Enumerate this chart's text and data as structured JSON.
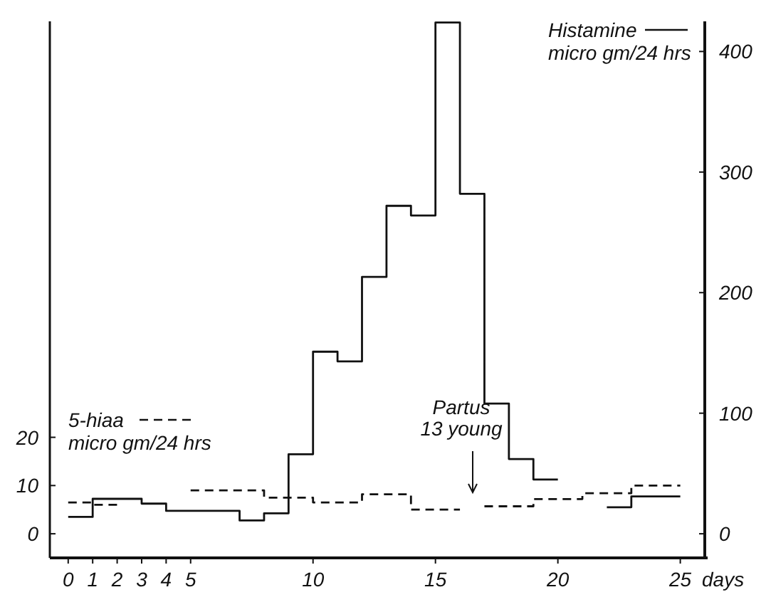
{
  "chart_data": {
    "type": "step",
    "xlabel": "days",
    "ylabel": "micro gm/24 hrs",
    "y2label": "micro gm/24 hrs",
    "xlim": [
      -0.75,
      26
    ],
    "xticks": [
      0,
      1,
      2,
      3,
      4,
      5,
      10,
      15,
      20,
      25
    ],
    "ylim": [
      -5,
      106.25
    ],
    "yticks": [
      0,
      10,
      20
    ],
    "y2lim": [
      -20,
      425
    ],
    "y2ticks": [
      0,
      100,
      200,
      300,
      400
    ],
    "legend": "top right",
    "grid": false,
    "series": [
      {
        "name": "Histamine",
        "color": "#111111",
        "axis": "y2",
        "line_style": "solid",
        "x": [
          0,
          1,
          3,
          4,
          7,
          8,
          9,
          10,
          11,
          12,
          13,
          14,
          15,
          16,
          17,
          18,
          19,
          20,
          22,
          23,
          25
        ],
        "values": [
          14,
          29,
          25,
          19,
          11,
          17,
          66,
          151,
          143,
          213,
          272,
          264,
          424,
          282,
          108,
          62,
          45,
          null,
          22,
          31,
          31
        ]
      },
      {
        "name": "5-hiaa",
        "color": "#111111",
        "axis": "y",
        "line_style": "dashed",
        "x": [
          0,
          1,
          2,
          5,
          8,
          10,
          12,
          14,
          16,
          17,
          19,
          21,
          23,
          25
        ],
        "values": [
          6.5,
          6,
          null,
          9,
          7.5,
          6.5,
          8.2,
          5,
          null,
          5.7,
          7.2,
          8.4,
          10,
          10
        ]
      }
    ],
    "annotations": [
      "Partus\n13 young"
    ]
  }
}
